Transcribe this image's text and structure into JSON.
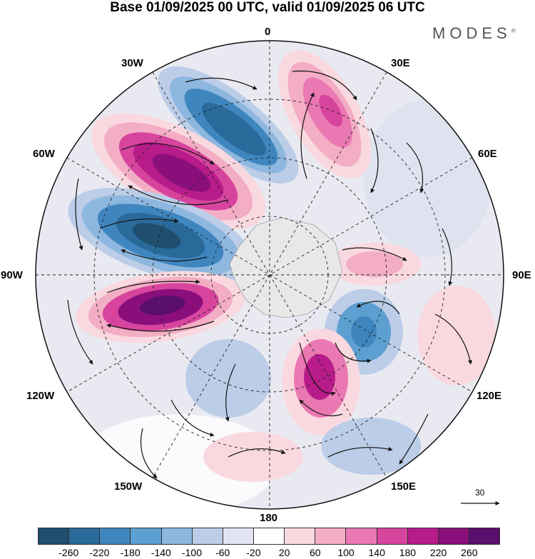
{
  "header": {
    "title": "Base 01/09/2025 00 UTC, valid 01/09/2025 06 UTC",
    "brand": "MODES",
    "brand_mark": "®"
  },
  "map": {
    "projection": "south-polar-stereographic",
    "longitude_labels": {
      "top": "0",
      "top_right": "30E",
      "right_upper": "60E",
      "right": "90E",
      "right_lower": "120E",
      "bottom_right": "150E",
      "bottom": "180",
      "bottom_left": "150W",
      "left_lower": "120W",
      "left": "90W",
      "left_upper": "60W",
      "top_left": "30W"
    },
    "reference_vector_label": "30"
  },
  "colorbar": {
    "colors": [
      "#1f4e6e",
      "#2a6a9a",
      "#3f86bf",
      "#5d9fd0",
      "#8db7de",
      "#bccde8",
      "#e3e4f1",
      "#ffffff",
      "#f9d9df",
      "#f3adc5",
      "#ea78b2",
      "#d7449e",
      "#b81b8a",
      "#8a0f7b",
      "#5a0e6e"
    ],
    "tick_labels": [
      "-260",
      "-220",
      "-180",
      "-140",
      "-100",
      "-60",
      "-20",
      "20",
      "60",
      "100",
      "140",
      "180",
      "220",
      "260"
    ]
  }
}
